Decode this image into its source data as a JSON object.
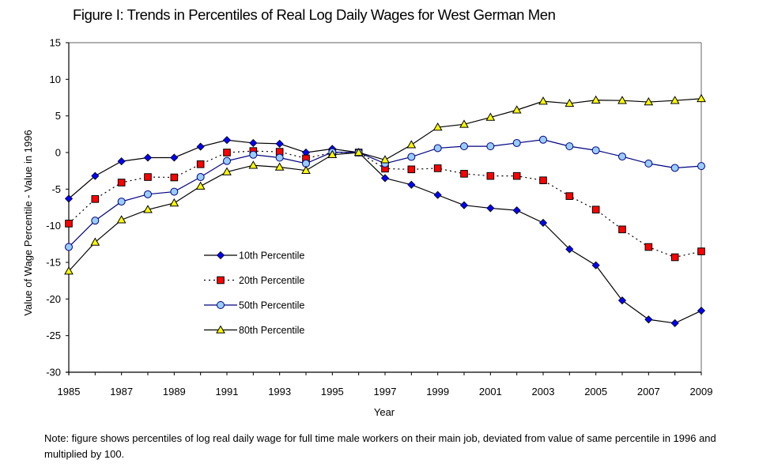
{
  "chart_data": {
    "type": "line",
    "title": "Figure I: Trends in Percentiles of Real Log Daily Wages for West German Men",
    "xlabel": "Year",
    "ylabel": "Value of Wage Percentile - Value in 1996",
    "x": [
      1985,
      1986,
      1987,
      1988,
      1989,
      1990,
      1991,
      1992,
      1993,
      1994,
      1995,
      1996,
      1997,
      1998,
      1999,
      2000,
      2001,
      2002,
      2003,
      2004,
      2005,
      2006,
      2007,
      2008,
      2009
    ],
    "xlim": [
      1985,
      2009
    ],
    "ylim": [
      -30,
      15
    ],
    "x_ticks": [
      "1985",
      "1987",
      "1989",
      "1991",
      "1993",
      "1995",
      "1997",
      "1999",
      "2001",
      "2003",
      "2005",
      "2007",
      "2009"
    ],
    "y_ticks": [
      "15",
      "10",
      "5",
      "0",
      "-5",
      "-10",
      "-15",
      "-20",
      "-25",
      "-30"
    ],
    "grid": false,
    "legend_position": "center-left",
    "series": [
      {
        "name": "10th Percentile",
        "marker": "diamond",
        "line_style": "solid",
        "line_color": "#000000",
        "marker_color": "#0000ff",
        "values": [
          -6.3,
          -3.2,
          -1.2,
          -0.7,
          -0.7,
          0.8,
          1.7,
          1.3,
          1.2,
          0.0,
          0.5,
          0.0,
          -3.5,
          -4.4,
          -5.8,
          -7.2,
          -7.6,
          -7.9,
          -9.6,
          -13.2,
          -15.4,
          -20.2,
          -22.8,
          -23.3,
          -21.6
        ]
      },
      {
        "name": "20th Percentile",
        "marker": "square",
        "line_style": "dotted",
        "line_color": "#000000",
        "marker_color": "#ff0000",
        "values": [
          -9.7,
          -6.35,
          -4.1,
          -3.35,
          -3.4,
          -1.6,
          0.0,
          0.2,
          0.1,
          -0.8,
          0.0,
          0.0,
          -2.2,
          -2.3,
          -2.15,
          -2.9,
          -3.2,
          -3.2,
          -3.8,
          -5.95,
          -7.8,
          -10.5,
          -12.9,
          -14.3,
          -13.5
        ]
      },
      {
        "name": "50th Percentile",
        "marker": "circle",
        "line_style": "solid",
        "line_color": "#000080",
        "marker_color": "#99ccff",
        "values": [
          -12.9,
          -9.3,
          -6.7,
          -5.7,
          -5.35,
          -3.35,
          -1.15,
          -0.3,
          -0.7,
          -1.5,
          0.05,
          0.0,
          -1.5,
          -0.6,
          0.6,
          0.85,
          0.85,
          1.3,
          1.75,
          0.85,
          0.3,
          -0.55,
          -1.5,
          -2.1,
          -1.85
        ]
      },
      {
        "name": "80th Percentile",
        "marker": "triangle",
        "line_style": "solid",
        "line_color": "#000000",
        "marker_color": "#ffff00",
        "values": [
          -16.2,
          -12.25,
          -9.2,
          -7.8,
          -6.9,
          -4.6,
          -2.65,
          -1.75,
          -2.0,
          -2.45,
          -0.3,
          0.0,
          -1.0,
          1.05,
          3.45,
          3.85,
          4.8,
          5.8,
          7.0,
          6.7,
          7.15,
          7.1,
          6.9,
          7.1,
          7.35
        ]
      }
    ]
  },
  "note": "Note: figure shows percentiles of log real daily wage for full time male workers on their main job, deviated from value of same percentile in 1996 and multiplied by 100."
}
